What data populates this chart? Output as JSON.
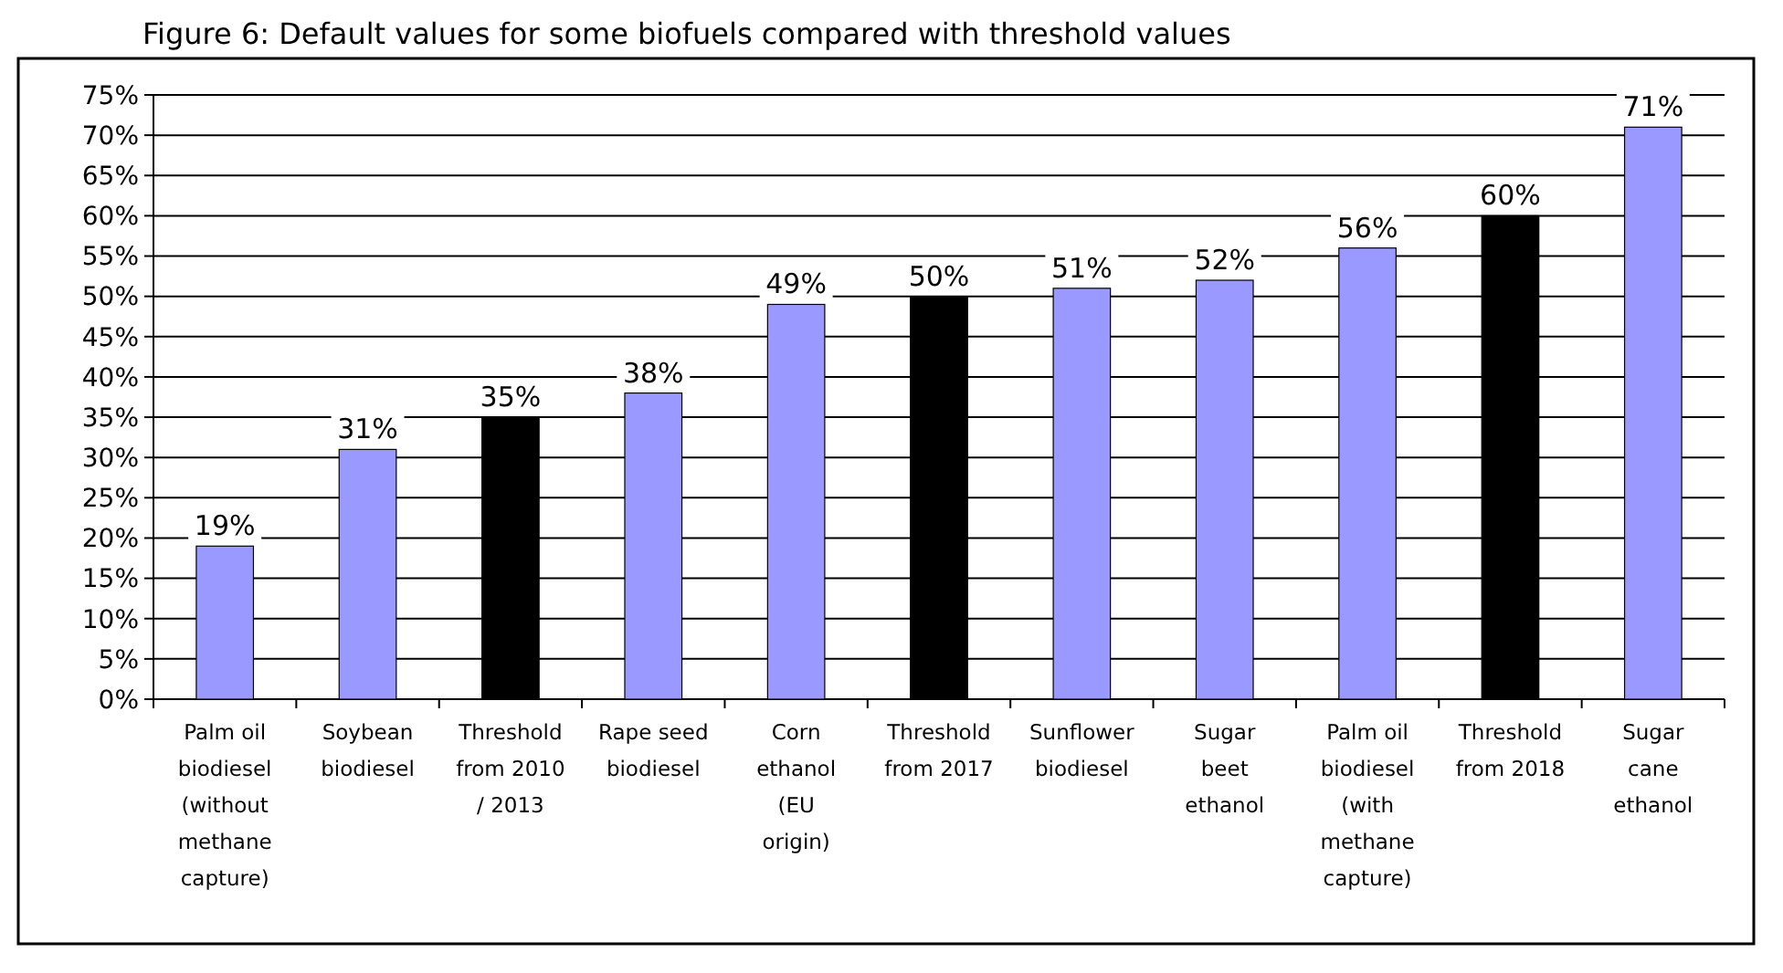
{
  "chart_data": {
    "type": "bar",
    "title": "Figure 6: Default values for some biofuels compared with threshold values",
    "categories": [
      "Palm oil biodiesel (without methane capture)",
      "Soybean biodiesel",
      "Threshold from 2010 / 2013",
      "Rape seed biodiesel",
      "Corn ethanol (EU origin)",
      "Threshold from 2017",
      "Sunflower biodiesel",
      "Sugar beet ethanol",
      "Palm oil biodiesel (with methane capture)",
      "Threshold from 2018",
      "Sugar cane ethanol"
    ],
    "values": [
      19,
      31,
      35,
      38,
      49,
      50,
      51,
      52,
      56,
      60,
      71
    ],
    "colors": [
      "#9999ff",
      "#9999ff",
      "#000000",
      "#9999ff",
      "#9999ff",
      "#000000",
      "#9999ff",
      "#9999ff",
      "#9999ff",
      "#000000",
      "#9999ff"
    ],
    "value_labels": [
      "19%",
      "31%",
      "35%",
      "38%",
      "49%",
      "50%",
      "51%",
      "52%",
      "56%",
      "60%",
      "71%"
    ],
    "ylim": [
      0,
      75
    ],
    "yticks": [
      {
        "value": 0,
        "label": "0%"
      },
      {
        "value": 5,
        "label": "5%"
      },
      {
        "value": 10,
        "label": "10%"
      },
      {
        "value": 15,
        "label": "15%"
      },
      {
        "value": 20,
        "label": "20%"
      },
      {
        "value": 25,
        "label": "25%"
      },
      {
        "value": 30,
        "label": "30%"
      },
      {
        "value": 35,
        "label": "35%"
      },
      {
        "value": 40,
        "label": "40%"
      },
      {
        "value": 45,
        "label": "45%"
      },
      {
        "value": 50,
        "label": "50%"
      },
      {
        "value": 55,
        "label": "55%"
      },
      {
        "value": 60,
        "label": "60%"
      },
      {
        "value": 65,
        "label": "65%"
      },
      {
        "value": 70,
        "label": "70%"
      },
      {
        "value": 75,
        "label": "75%"
      }
    ],
    "grid": "y"
  }
}
